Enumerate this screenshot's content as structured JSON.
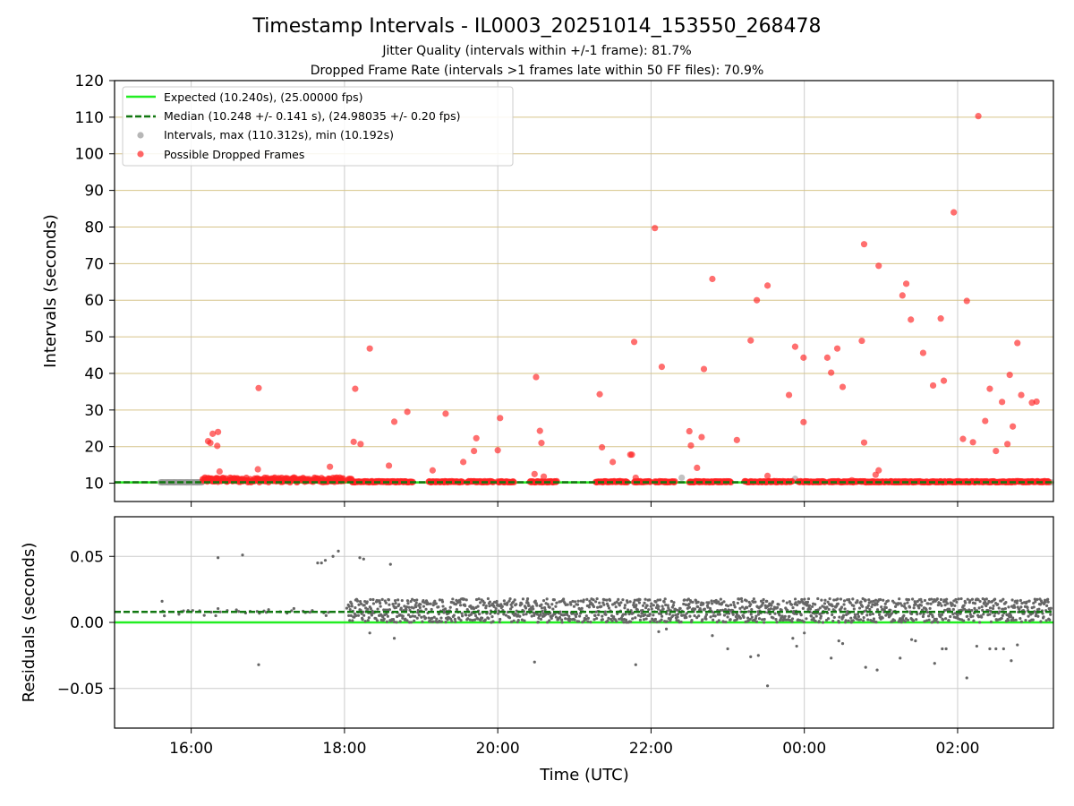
{
  "chart_data": [
    {
      "type": "scatter",
      "title": "Timestamp Intervals - IL0003_20251014_153550_268478",
      "subtitle_1": "Jitter Quality (intervals within +/-1 frame): 81.7%",
      "subtitle_2": "Dropped Frame Rate (intervals >1 frames late within 50 FF files): 70.9%",
      "ylabel": "Intervals (seconds)",
      "ylim": [
        5,
        120
      ],
      "xlim": [
        15.0,
        27.25
      ],
      "yticks": [
        10,
        20,
        30,
        40,
        50,
        60,
        70,
        80,
        90,
        100,
        110,
        120
      ],
      "ytick_labels": [
        "10",
        "20",
        "30",
        "40",
        "50",
        "60",
        "70",
        "80",
        "90",
        "100",
        "110",
        "120"
      ],
      "xticks": [
        16,
        18,
        20,
        22,
        24,
        26
      ],
      "expected_interval": 10.24,
      "median_interval": 10.248,
      "legend": {
        "position": "upper-left",
        "entries": [
          "Expected (10.240s), (25.00000 fps)",
          "Median (10.248 +/- 0.141 s), (24.98035 +/- 0.20 fps)",
          "Intervals, max (110.312s), min (10.192s)",
          "Possible Dropped Frames"
        ]
      },
      "series": [
        {
          "name": "Possible Dropped Frames",
          "points": [
            [
              16.22,
              21.5
            ],
            [
              16.25,
              21.0
            ],
            [
              16.28,
              23.5
            ],
            [
              16.35,
              24.0
            ],
            [
              16.34,
              20.2
            ],
            [
              16.37,
              13.2
            ],
            [
              16.87,
              13.8
            ],
            [
              16.88,
              36.0
            ],
            [
              17.81,
              14.5
            ],
            [
              18.12,
              21.3
            ],
            [
              18.14,
              35.8
            ],
            [
              18.21,
              20.7
            ],
            [
              18.33,
              46.8
            ],
            [
              18.58,
              14.8
            ],
            [
              18.65,
              26.8
            ],
            [
              18.82,
              29.5
            ],
            [
              19.15,
              13.5
            ],
            [
              19.32,
              29.0
            ],
            [
              19.55,
              15.8
            ],
            [
              19.69,
              18.8
            ],
            [
              19.72,
              22.3
            ],
            [
              20.0,
              19.0
            ],
            [
              20.03,
              27.8
            ],
            [
              20.48,
              12.5
            ],
            [
              20.5,
              39.0
            ],
            [
              20.55,
              24.3
            ],
            [
              20.57,
              21.0
            ],
            [
              20.6,
              11.8
            ],
            [
              21.33,
              34.3
            ],
            [
              21.36,
              19.8
            ],
            [
              21.5,
              15.8
            ],
            [
              21.73,
              17.8
            ],
            [
              21.75,
              17.8
            ],
            [
              21.78,
              48.6
            ],
            [
              21.8,
              11.5
            ],
            [
              22.05,
              79.7
            ],
            [
              22.14,
              41.8
            ],
            [
              22.5,
              24.2
            ],
            [
              22.52,
              20.3
            ],
            [
              22.6,
              14.2
            ],
            [
              22.66,
              22.6
            ],
            [
              22.69,
              41.2
            ],
            [
              22.8,
              65.8
            ],
            [
              23.12,
              21.8
            ],
            [
              23.3,
              49.0
            ],
            [
              23.38,
              60.0
            ],
            [
              23.52,
              64.0
            ],
            [
              23.52,
              12.0
            ],
            [
              23.8,
              34.1
            ],
            [
              23.88,
              47.3
            ],
            [
              23.99,
              26.7
            ],
            [
              23.99,
              44.3
            ],
            [
              24.3,
              44.3
            ],
            [
              24.35,
              40.2
            ],
            [
              24.43,
              46.8
            ],
            [
              24.5,
              36.3
            ],
            [
              24.62,
              10.8
            ],
            [
              24.75,
              48.9
            ],
            [
              24.78,
              75.3
            ],
            [
              24.78,
              21.1
            ],
            [
              24.93,
              12.3
            ],
            [
              24.97,
              13.5
            ],
            [
              24.97,
              69.4
            ],
            [
              25.28,
              61.3
            ],
            [
              25.33,
              64.5
            ],
            [
              25.39,
              54.7
            ],
            [
              25.55,
              45.6
            ],
            [
              25.68,
              36.7
            ],
            [
              25.78,
              55.0
            ],
            [
              25.82,
              38.0
            ],
            [
              25.95,
              84.0
            ],
            [
              26.07,
              22.1
            ],
            [
              26.12,
              59.8
            ],
            [
              26.2,
              21.2
            ],
            [
              26.27,
              110.3
            ],
            [
              26.36,
              27.0
            ],
            [
              26.42,
              35.8
            ],
            [
              26.5,
              18.8
            ],
            [
              26.58,
              32.2
            ],
            [
              26.65,
              20.7
            ],
            [
              26.68,
              39.6
            ],
            [
              26.72,
              25.5
            ],
            [
              26.78,
              48.3
            ],
            [
              26.83,
              34.1
            ],
            [
              26.97,
              32.0
            ],
            [
              27.03,
              32.3
            ]
          ],
          "dense_runs": [
            [
              16.15,
              18.0
            ],
            [
              18.05,
              18.62
            ],
            [
              18.62,
              18.9
            ],
            [
              19.1,
              19.55
            ],
            [
              19.6,
              19.95
            ],
            [
              20.0,
              20.22
            ],
            [
              20.42,
              20.78
            ],
            [
              21.28,
              21.7
            ],
            [
              21.78,
              22.0
            ],
            [
              22.05,
              22.32
            ],
            [
              22.5,
              23.05
            ],
            [
              23.22,
              23.85
            ],
            [
              23.92,
              24.28
            ],
            [
              24.32,
              24.7
            ],
            [
              24.72,
              25.15
            ],
            [
              25.12,
              27.2
            ]
          ]
        },
        {
          "name": "Intervals",
          "points": [
            [
              15.62,
              10.24
            ],
            [
              15.7,
              10.24
            ],
            [
              15.78,
              10.24
            ],
            [
              15.86,
              10.24
            ],
            [
              15.94,
              10.24
            ],
            [
              16.02,
              10.24
            ],
            [
              16.08,
              10.24
            ],
            [
              22.4,
              11.5
            ],
            [
              23.88,
              11.2
            ],
            [
              27.22,
              10.24
            ]
          ],
          "dense_runs": [
            [
              15.6,
              16.15
            ]
          ]
        }
      ]
    },
    {
      "type": "scatter",
      "xlabel": "Time (UTC)",
      "ylabel": "Residuals (seconds)",
      "ylim": [
        -0.08,
        0.08
      ],
      "xlim": [
        15.0,
        27.25
      ],
      "yticks": [
        -0.05,
        0.0,
        0.05
      ],
      "ytick_labels": [
        "−0.05",
        "0.00",
        "0.05"
      ],
      "xticks": [
        16,
        18,
        20,
        22,
        24,
        26
      ],
      "xtick_labels": [
        "16:00",
        "18:00",
        "20:00",
        "22:00",
        "00:00",
        "02:00"
      ],
      "expected_residual": 0.0,
      "median_residual": 0.008,
      "series": [
        {
          "name": "Residuals",
          "points": [
            [
              15.62,
              0.016
            ],
            [
              15.65,
              0.005
            ],
            [
              16.35,
              0.049
            ],
            [
              16.67,
              0.051
            ],
            [
              16.88,
              -0.032
            ],
            [
              17.65,
              0.045
            ],
            [
              17.7,
              0.045
            ],
            [
              17.75,
              0.047
            ],
            [
              17.85,
              0.05
            ],
            [
              17.92,
              0.054
            ],
            [
              18.2,
              0.049
            ],
            [
              18.25,
              0.048
            ],
            [
              18.6,
              0.044
            ],
            [
              18.33,
              -0.008
            ],
            [
              18.65,
              -0.012
            ],
            [
              20.48,
              -0.03
            ],
            [
              21.8,
              -0.032
            ],
            [
              22.1,
              -0.007
            ],
            [
              22.2,
              -0.005
            ],
            [
              22.8,
              -0.01
            ],
            [
              23.0,
              -0.02
            ],
            [
              23.3,
              -0.026
            ],
            [
              23.4,
              -0.025
            ],
            [
              23.52,
              -0.048
            ],
            [
              23.85,
              -0.012
            ],
            [
              23.9,
              -0.018
            ],
            [
              24.0,
              -0.008
            ],
            [
              24.35,
              -0.027
            ],
            [
              24.45,
              -0.014
            ],
            [
              24.5,
              -0.016
            ],
            [
              24.8,
              -0.034
            ],
            [
              24.95,
              -0.036
            ],
            [
              25.25,
              -0.027
            ],
            [
              25.4,
              -0.013
            ],
            [
              25.45,
              -0.014
            ],
            [
              25.7,
              -0.031
            ],
            [
              25.8,
              -0.02
            ],
            [
              25.85,
              -0.02
            ],
            [
              26.12,
              -0.042
            ],
            [
              26.25,
              -0.018
            ],
            [
              26.42,
              -0.02
            ],
            [
              26.5,
              -0.02
            ],
            [
              26.6,
              -0.02
            ],
            [
              26.7,
              -0.029
            ],
            [
              26.78,
              -0.017
            ]
          ],
          "dense_range": [
            18.05,
            27.22
          ],
          "dense_band": [
            0.0,
            0.018
          ],
          "sparse_range": [
            15.6,
            18.05
          ],
          "sparse_band": [
            0.005,
            0.011
          ]
        }
      ]
    }
  ]
}
